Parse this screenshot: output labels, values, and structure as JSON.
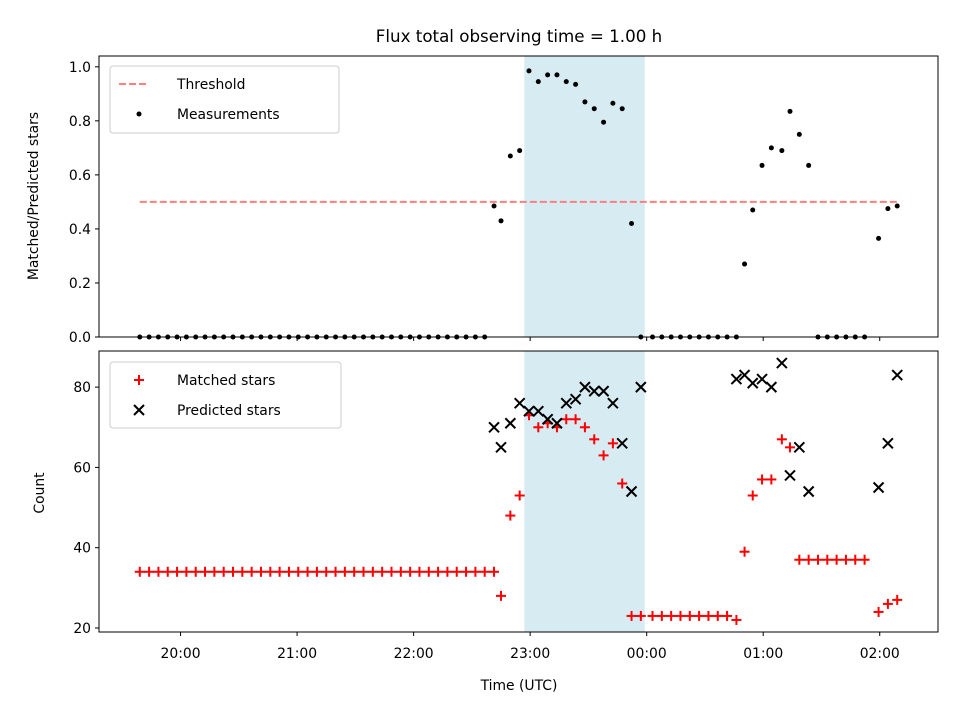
{
  "title": "Flux total observing time = 1.00 h",
  "colors": {
    "threshold": "#ff7f7f",
    "measurements": "#000000",
    "matched": "#ff0000",
    "predicted": "#000000",
    "highlight": "#add8e6"
  },
  "chart_data": [
    {
      "type": "scatter",
      "ylabel": "Matched/Predicted stars",
      "ylim": [
        0,
        1.04
      ],
      "yticks": [
        "0.0",
        "0.2",
        "0.4",
        "0.6",
        "0.8",
        "1.0"
      ],
      "x_unit": "hours from 00:00 UTC",
      "xlim": [
        -4.7,
        2.5
      ],
      "highlight_span": [
        "22:57",
        "23:59"
      ],
      "legend": {
        "position": "upper left",
        "entries": [
          "Threshold",
          "Measurements"
        ]
      },
      "series": [
        {
          "name": "Threshold",
          "kind": "dashed-line",
          "x": [
            -4.35,
            2.15
          ],
          "y": [
            0.5,
            0.5
          ]
        },
        {
          "name": "Measurements",
          "kind": "points",
          "x": [
            -4.35,
            -4.27,
            -4.19,
            -4.11,
            -4.03,
            -3.95,
            -3.87,
            -3.79,
            -3.71,
            -3.63,
            -3.55,
            -3.47,
            -3.39,
            -3.31,
            -3.23,
            -3.15,
            -3.07,
            -2.99,
            -2.91,
            -2.83,
            -2.75,
            -2.67,
            -2.59,
            -2.51,
            -2.43,
            -2.35,
            -2.27,
            -2.19,
            -2.11,
            -2.03,
            -1.95,
            -1.87,
            -1.79,
            -1.71,
            -1.63,
            -1.55,
            -1.47,
            -1.39,
            -1.31,
            -1.25,
            -1.17,
            -1.09,
            -1.01,
            -0.93,
            -0.85,
            -0.77,
            -0.69,
            -0.61,
            -0.53,
            -0.45,
            -0.37,
            -0.29,
            -0.21,
            -0.13,
            -0.05,
            0.05,
            0.13,
            0.21,
            0.29,
            0.37,
            0.45,
            0.53,
            0.61,
            0.69,
            0.77,
            0.84,
            0.91,
            0.99,
            1.07,
            1.16,
            1.23,
            1.31,
            1.39,
            1.47,
            1.55,
            1.63,
            1.71,
            1.79,
            1.87,
            1.99,
            2.07,
            2.15
          ],
          "y": [
            0,
            0,
            0,
            0,
            0,
            0,
            0,
            0,
            0,
            0,
            0,
            0,
            0,
            0,
            0,
            0,
            0,
            0,
            0,
            0,
            0,
            0,
            0,
            0,
            0,
            0,
            0,
            0,
            0,
            0,
            0,
            0,
            0,
            0,
            0,
            0,
            0,
            0,
            0.485,
            0.43,
            0.67,
            0.69,
            0.985,
            0.945,
            0.97,
            0.97,
            0.945,
            0.935,
            0.87,
            0.845,
            0.795,
            0.865,
            0.845,
            0.42,
            0,
            0,
            0,
            0,
            0,
            0,
            0,
            0,
            0,
            0,
            0,
            0.27,
            0.47,
            0.635,
            0.7,
            0.69,
            0.835,
            0.75,
            0.635,
            0,
            0,
            0,
            0,
            0,
            0,
            0.365,
            0.475,
            0.485
          ]
        }
      ]
    },
    {
      "type": "scatter",
      "xlabel": "Time (UTC)",
      "ylabel": "Count",
      "ylim": [
        19,
        89
      ],
      "yticks": [
        "20",
        "40",
        "60",
        "80"
      ],
      "xticks": [
        "20:00",
        "21:00",
        "22:00",
        "23:00",
        "00:00",
        "01:00",
        "02:00"
      ],
      "x_unit": "hours from 00:00 UTC",
      "xlim": [
        -4.7,
        2.5
      ],
      "highlight_span": [
        "22:57",
        "23:59"
      ],
      "legend": {
        "position": "upper left",
        "entries": [
          "Matched stars",
          "Predicted stars"
        ]
      },
      "series": [
        {
          "name": "Matched stars",
          "marker": "+",
          "x": [
            -4.35,
            -4.27,
            -4.19,
            -4.11,
            -4.03,
            -3.95,
            -3.87,
            -3.79,
            -3.71,
            -3.63,
            -3.55,
            -3.47,
            -3.39,
            -3.31,
            -3.23,
            -3.15,
            -3.07,
            -2.99,
            -2.91,
            -2.83,
            -2.75,
            -2.67,
            -2.59,
            -2.51,
            -2.43,
            -2.35,
            -2.27,
            -2.19,
            -2.11,
            -2.03,
            -1.95,
            -1.87,
            -1.79,
            -1.71,
            -1.63,
            -1.55,
            -1.47,
            -1.39,
            -1.31,
            -1.25,
            -1.17,
            -1.09,
            -1.01,
            -0.93,
            -0.85,
            -0.77,
            -0.69,
            -0.61,
            -0.53,
            -0.45,
            -0.37,
            -0.29,
            -0.21,
            -0.13,
            -0.05,
            0.05,
            0.13,
            0.21,
            0.29,
            0.37,
            0.45,
            0.53,
            0.61,
            0.69,
            0.77,
            0.84,
            0.91,
            0.99,
            1.07,
            1.16,
            1.23,
            1.31,
            1.39,
            1.47,
            1.55,
            1.63,
            1.71,
            1.79,
            1.87,
            1.99,
            2.07,
            2.15
          ],
          "y": [
            34,
            34,
            34,
            34,
            34,
            34,
            34,
            34,
            34,
            34,
            34,
            34,
            34,
            34,
            34,
            34,
            34,
            34,
            34,
            34,
            34,
            34,
            34,
            34,
            34,
            34,
            34,
            34,
            34,
            34,
            34,
            34,
            34,
            34,
            34,
            34,
            34,
            34,
            34,
            28,
            48,
            53,
            73,
            70,
            71,
            70,
            72,
            72,
            70,
            67,
            63,
            66,
            56,
            23,
            23,
            23,
            23,
            23,
            23,
            23,
            23,
            23,
            23,
            23,
            22,
            39,
            53,
            57,
            57,
            67,
            65,
            37,
            37,
            37,
            37,
            37,
            37,
            37,
            37,
            24,
            26,
            27
          ]
        },
        {
          "name": "Predicted stars",
          "marker": "x",
          "x": [
            -1.31,
            -1.25,
            -1.17,
            -1.09,
            -1.01,
            -0.93,
            -0.85,
            -0.77,
            -0.69,
            -0.61,
            -0.53,
            -0.45,
            -0.37,
            -0.29,
            -0.21,
            -0.13,
            -0.05,
            0.77,
            0.84,
            0.91,
            0.99,
            1.07,
            1.16,
            1.23,
            1.31,
            1.39,
            1.99,
            2.07,
            2.15
          ],
          "y": [
            70,
            65,
            71,
            76,
            74,
            74,
            72,
            71,
            76,
            77,
            80,
            79,
            79,
            76,
            66,
            54,
            80,
            82,
            83,
            81,
            82,
            80,
            86,
            58,
            65,
            54,
            55,
            66,
            83
          ]
        }
      ]
    }
  ]
}
